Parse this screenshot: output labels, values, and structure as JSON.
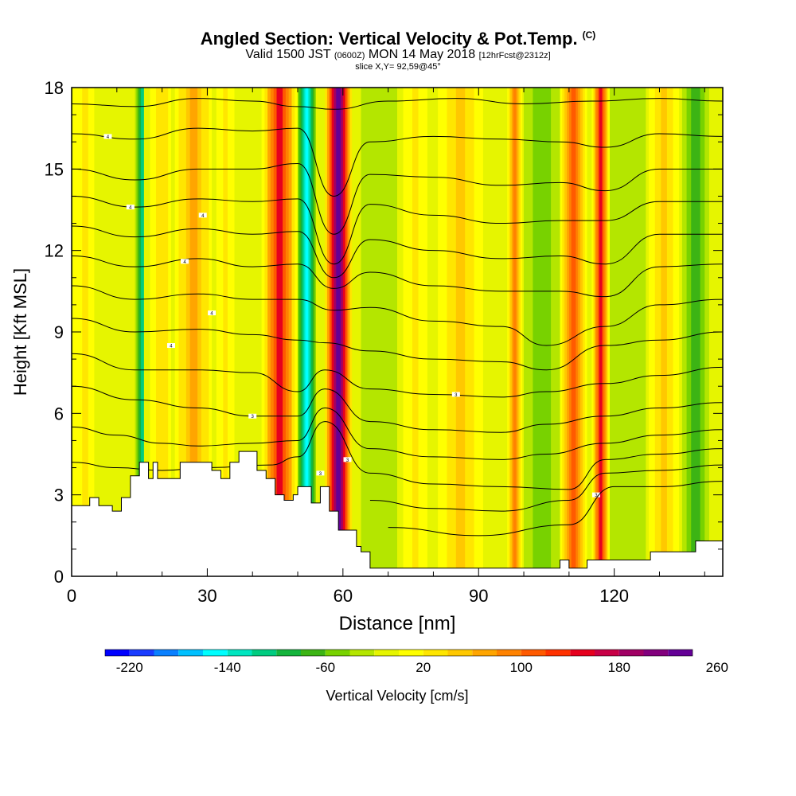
{
  "title": {
    "main": "Angled Section: Vertical Velocity & Pot.Temp.",
    "copyright": "(C)",
    "valid_prefix": "Valid 1500 JST",
    "utc": "(0600Z)",
    "valid_date": "MON 14 May 2018",
    "forecast": "[12hrFcst@2312z]",
    "slice": "slice X,Y= 92,59@45°"
  },
  "chart_data": {
    "type": "heatmap",
    "xlabel": "Distance [nm]",
    "ylabel": "Height [Kft MSL]",
    "xlim": [
      0,
      144
    ],
    "ylim": [
      0,
      18
    ],
    "xticks": [
      0,
      30,
      60,
      90,
      120
    ],
    "yticks": [
      0,
      3,
      6,
      9,
      12,
      15,
      18
    ],
    "colorbar": {
      "label": "Vertical Velocity [cm/s]",
      "min": -240,
      "step": 20,
      "tick_labels": [
        -220,
        -140,
        -60,
        20,
        100,
        180,
        260
      ],
      "colors": [
        "#0000ff",
        "#1a3cff",
        "#0a80ff",
        "#00c0ff",
        "#00ffff",
        "#00e6c0",
        "#00cc80",
        "#14b43c",
        "#3cb414",
        "#78d200",
        "#b4e600",
        "#e6f500",
        "#ffff00",
        "#ffe600",
        "#ffc800",
        "#ffa500",
        "#ff8200",
        "#ff5a00",
        "#ff3200",
        "#e6001e",
        "#c80046",
        "#a00064",
        "#82007d",
        "#640096"
      ]
    },
    "velocity_columns": [
      {
        "x": 3,
        "w": 4,
        "v": 20
      },
      {
        "x": 8,
        "w": 3,
        "v": -20
      },
      {
        "x": 16,
        "w": 2,
        "v": -120
      },
      {
        "x": 20,
        "w": 4,
        "v": 30
      },
      {
        "x": 27,
        "w": 5,
        "v": 60
      },
      {
        "x": 34,
        "w": 3,
        "v": 20
      },
      {
        "x": 46,
        "w": 4,
        "v": 140
      },
      {
        "x": 52,
        "w": 2,
        "v": -160
      },
      {
        "x": 59,
        "w": 3,
        "v": 240
      },
      {
        "x": 68,
        "w": 4,
        "v": -40
      },
      {
        "x": 76,
        "w": 4,
        "v": 20
      },
      {
        "x": 86,
        "w": 6,
        "v": 40
      },
      {
        "x": 98,
        "w": 2,
        "v": 90
      },
      {
        "x": 104,
        "w": 4,
        "v": -60
      },
      {
        "x": 111,
        "w": 3,
        "v": 100
      },
      {
        "x": 117,
        "w": 2,
        "v": 140
      },
      {
        "x": 123,
        "w": 4,
        "v": -40
      },
      {
        "x": 131,
        "w": 4,
        "v": 40
      },
      {
        "x": 138,
        "w": 3,
        "v": -80
      }
    ],
    "terrain": [
      [
        0,
        2.6
      ],
      [
        4,
        2.6
      ],
      [
        4,
        2.9
      ],
      [
        6,
        2.9
      ],
      [
        6,
        2.6
      ],
      [
        9,
        2.6
      ],
      [
        9,
        2.4
      ],
      [
        11,
        2.4
      ],
      [
        11,
        2.9
      ],
      [
        13,
        2.9
      ],
      [
        13,
        3.7
      ],
      [
        15,
        3.7
      ],
      [
        15,
        4.2
      ],
      [
        17,
        4.2
      ],
      [
        17,
        3.6
      ],
      [
        18,
        3.6
      ],
      [
        18,
        4.2
      ],
      [
        19,
        4.2
      ],
      [
        19,
        3.6
      ],
      [
        24,
        3.6
      ],
      [
        24,
        4.2
      ],
      [
        31,
        4.2
      ],
      [
        31,
        3.9
      ],
      [
        33,
        3.9
      ],
      [
        33,
        3.6
      ],
      [
        35,
        3.6
      ],
      [
        35,
        4.2
      ],
      [
        37,
        4.2
      ],
      [
        37,
        4.6
      ],
      [
        41,
        4.6
      ],
      [
        41,
        3.9
      ],
      [
        43,
        3.9
      ],
      [
        43,
        3.6
      ],
      [
        45,
        3.6
      ],
      [
        45,
        3.0
      ],
      [
        47,
        3.0
      ],
      [
        47,
        2.8
      ],
      [
        49,
        2.8
      ],
      [
        49,
        3.0
      ],
      [
        50,
        3.0
      ],
      [
        50,
        3.3
      ],
      [
        53,
        3.3
      ],
      [
        53,
        2.7
      ],
      [
        55,
        2.7
      ],
      [
        55,
        3.3
      ],
      [
        57,
        3.3
      ],
      [
        57,
        2.4
      ],
      [
        59,
        2.4
      ],
      [
        59,
        1.7
      ],
      [
        63,
        1.7
      ],
      [
        63,
        1.1
      ],
      [
        64,
        1.1
      ],
      [
        64,
        0.9
      ],
      [
        66,
        0.9
      ],
      [
        66,
        0.3
      ],
      [
        108,
        0.3
      ],
      [
        108,
        0.6
      ],
      [
        110,
        0.6
      ],
      [
        110,
        0.3
      ],
      [
        114,
        0.3
      ],
      [
        114,
        0.6
      ],
      [
        128,
        0.6
      ],
      [
        128,
        0.9
      ],
      [
        138,
        0.9
      ],
      [
        138,
        1.3
      ],
      [
        144,
        1.3
      ],
      [
        144,
        0
      ]
    ],
    "isentropes": [
      {
        "pts": [
          [
            0,
            17.4
          ],
          [
            14,
            17.3
          ],
          [
            28,
            17.6
          ],
          [
            40,
            17.5
          ],
          [
            50,
            17.3
          ],
          [
            58,
            17.2
          ],
          [
            70,
            17.5
          ],
          [
            85,
            17.6
          ],
          [
            100,
            17.4
          ],
          [
            115,
            17.5
          ],
          [
            130,
            17.6
          ],
          [
            144,
            17.5
          ]
        ]
      },
      {
        "pts": [
          [
            0,
            16.3
          ],
          [
            14,
            16.1
          ],
          [
            28,
            16.5
          ],
          [
            40,
            16.4
          ],
          [
            50,
            16.5
          ],
          [
            58,
            14.0
          ],
          [
            66,
            16.0
          ],
          [
            80,
            16.2
          ],
          [
            95,
            16.1
          ],
          [
            108,
            16.0
          ],
          [
            118,
            15.8
          ],
          [
            130,
            16.3
          ],
          [
            144,
            16.2
          ]
        ],
        "label": "4",
        "at": [
          8,
          16.2
        ]
      },
      {
        "pts": [
          [
            0,
            15.0
          ],
          [
            14,
            14.6
          ],
          [
            28,
            15.0
          ],
          [
            40,
            15.0
          ],
          [
            50,
            15.2
          ],
          [
            58,
            12.6
          ],
          [
            66,
            14.8
          ],
          [
            80,
            14.7
          ],
          [
            95,
            14.4
          ],
          [
            108,
            14.5
          ],
          [
            118,
            14.2
          ],
          [
            130,
            15.0
          ],
          [
            144,
            15.0
          ]
        ]
      },
      {
        "pts": [
          [
            0,
            14.0
          ],
          [
            14,
            13.6
          ],
          [
            28,
            13.9
          ],
          [
            40,
            13.8
          ],
          [
            50,
            13.9
          ],
          [
            58,
            11.5
          ],
          [
            66,
            13.7
          ],
          [
            80,
            13.3
          ],
          [
            95,
            13.0
          ],
          [
            108,
            13.1
          ],
          [
            118,
            13.1
          ],
          [
            130,
            13.8
          ],
          [
            144,
            13.8
          ]
        ],
        "label": "4",
        "at": [
          13,
          13.6
        ]
      },
      {
        "pts": [
          [
            0,
            12.9
          ],
          [
            14,
            12.5
          ],
          [
            28,
            12.8
          ],
          [
            40,
            12.6
          ],
          [
            50,
            12.7
          ],
          [
            58,
            11.0
          ],
          [
            66,
            12.4
          ],
          [
            80,
            12.0
          ],
          [
            95,
            11.7
          ],
          [
            108,
            11.8
          ],
          [
            118,
            11.5
          ],
          [
            130,
            12.6
          ],
          [
            144,
            12.6
          ]
        ],
        "label": "4",
        "at": [
          29,
          13.3
        ]
      },
      {
        "pts": [
          [
            0,
            11.8
          ],
          [
            14,
            11.4
          ],
          [
            28,
            11.7
          ],
          [
            40,
            11.4
          ],
          [
            50,
            11.5
          ],
          [
            58,
            10.6
          ],
          [
            66,
            11.2
          ],
          [
            80,
            10.7
          ],
          [
            95,
            10.5
          ],
          [
            108,
            10.5
          ],
          [
            118,
            10.3
          ],
          [
            130,
            11.4
          ],
          [
            144,
            11.5
          ]
        ],
        "label": "4",
        "at": [
          25,
          11.6
        ]
      },
      {
        "pts": [
          [
            0,
            10.7
          ],
          [
            14,
            10.2
          ],
          [
            28,
            10.4
          ],
          [
            40,
            10.2
          ],
          [
            50,
            10.2
          ],
          [
            58,
            9.8
          ],
          [
            66,
            9.9
          ],
          [
            80,
            9.4
          ],
          [
            95,
            9.2
          ],
          [
            105,
            8.5
          ],
          [
            118,
            9.2
          ],
          [
            130,
            10.0
          ],
          [
            144,
            10.2
          ]
        ],
        "label": "4",
        "at": [
          31,
          9.7
        ]
      },
      {
        "pts": [
          [
            0,
            9.5
          ],
          [
            14,
            9.0
          ],
          [
            28,
            9.1
          ],
          [
            40,
            8.9
          ],
          [
            50,
            8.7
          ],
          [
            56,
            8.6
          ],
          [
            66,
            8.3
          ],
          [
            80,
            8.0
          ],
          [
            95,
            7.9
          ],
          [
            105,
            7.6
          ],
          [
            118,
            8.5
          ],
          [
            130,
            8.7
          ],
          [
            144,
            9.0
          ]
        ],
        "label": "4",
        "at": [
          22,
          8.5
        ]
      },
      {
        "pts": [
          [
            0,
            8.2
          ],
          [
            14,
            7.6
          ],
          [
            28,
            7.6
          ],
          [
            40,
            7.5
          ],
          [
            50,
            6.8
          ],
          [
            56,
            7.6
          ],
          [
            66,
            6.9
          ],
          [
            80,
            6.7
          ],
          [
            95,
            6.6
          ],
          [
            105,
            6.8
          ],
          [
            118,
            7.1
          ],
          [
            130,
            7.4
          ],
          [
            144,
            7.7
          ]
        ],
        "label": "3",
        "at": [
          85,
          6.7
        ]
      },
      {
        "pts": [
          [
            0,
            7.0
          ],
          [
            14,
            6.5
          ],
          [
            28,
            6.2
          ],
          [
            40,
            5.9
          ],
          [
            50,
            5.9
          ],
          [
            56,
            6.9
          ],
          [
            66,
            5.7
          ],
          [
            80,
            5.4
          ],
          [
            95,
            5.3
          ],
          [
            105,
            5.6
          ],
          [
            118,
            5.9
          ],
          [
            130,
            6.2
          ],
          [
            144,
            6.4
          ]
        ],
        "label": "3",
        "at": [
          40,
          5.9
        ]
      },
      {
        "pts": [
          [
            0,
            5.5
          ],
          [
            10,
            5.2
          ],
          [
            20,
            4.9
          ],
          [
            28,
            4.8
          ],
          [
            40,
            4.9
          ],
          [
            50,
            5.0
          ],
          [
            56,
            6.2
          ],
          [
            66,
            4.7
          ],
          [
            80,
            4.4
          ],
          [
            95,
            4.3
          ],
          [
            105,
            4.5
          ],
          [
            118,
            4.9
          ],
          [
            130,
            5.2
          ],
          [
            144,
            5.4
          ]
        ],
        "label": "3",
        "at": [
          61,
          4.3
        ]
      },
      {
        "pts": [
          [
            0,
            4.2
          ],
          [
            10,
            4.0
          ],
          [
            20,
            3.9
          ],
          [
            30,
            4.0
          ],
          [
            44,
            4.1
          ],
          [
            50,
            4.4
          ],
          [
            56,
            5.7
          ],
          [
            66,
            3.8
          ],
          [
            80,
            3.4
          ],
          [
            95,
            3.3
          ],
          [
            110,
            3.2
          ],
          [
            118,
            4.3
          ],
          [
            130,
            4.5
          ],
          [
            144,
            4.7
          ]
        ],
        "label": "3",
        "at": [
          55,
          3.8
        ]
      },
      {
        "pts": [
          [
            66,
            2.8
          ],
          [
            80,
            2.5
          ],
          [
            95,
            2.4
          ],
          [
            110,
            2.8
          ],
          [
            118,
            3.8
          ],
          [
            130,
            3.9
          ],
          [
            144,
            4.1
          ]
        ],
        "label": "3",
        "at": [
          116,
          3.0
        ]
      },
      {
        "pts": [
          [
            70,
            1.8
          ],
          [
            90,
            1.5
          ],
          [
            110,
            1.9
          ],
          [
            120,
            3.3
          ],
          [
            130,
            3.3
          ],
          [
            144,
            3.5
          ]
        ]
      }
    ]
  }
}
